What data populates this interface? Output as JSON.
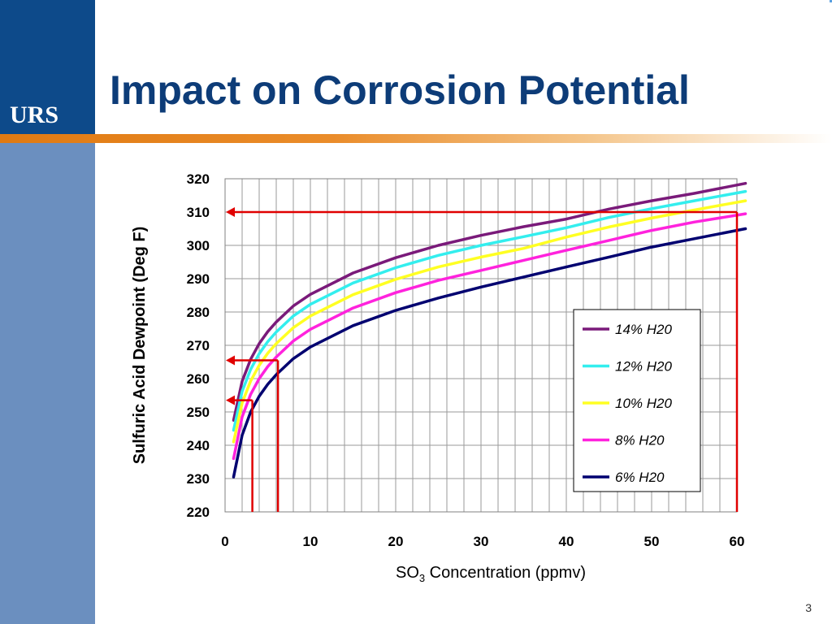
{
  "slide": {
    "title": "Impact on Corrosion Potential",
    "logo_text": "URS",
    "page_number": "3"
  },
  "colors": {
    "brand_blue": "#0d4a8a",
    "side_bar": "#6b8fbf",
    "accent_orange": "#e07a12",
    "marker_red": "#e00000"
  },
  "chart_data": {
    "type": "line",
    "title": "",
    "xlabel_main": "SO",
    "xlabel_sub": "3",
    "xlabel_rest": " Concentration (ppmv)",
    "ylabel": "Sulfuric Acid Dewpoint (Deg F)",
    "xlim": [
      0,
      60
    ],
    "ylim": [
      220,
      320
    ],
    "x_ticks": [
      "0",
      "10",
      "20",
      "30",
      "40",
      "50",
      "60"
    ],
    "y_ticks": [
      "220",
      "230",
      "240",
      "250",
      "260",
      "270",
      "280",
      "290",
      "300",
      "310",
      "320"
    ],
    "grid": true,
    "legend_position": "right-middle",
    "x": [
      1,
      2,
      3,
      4,
      5,
      6,
      8,
      10,
      15,
      20,
      25,
      30,
      35,
      40,
      45,
      50,
      55,
      61
    ],
    "series": [
      {
        "name": "14% H20",
        "color": "#7a1a7a",
        "values": [
          247.5,
          259.2,
          265.8,
          270.5,
          274.1,
          277.0,
          281.8,
          285.3,
          291.7,
          296.3,
          300.0,
          303.0,
          305.6,
          307.9,
          310.9,
          313.4,
          315.6,
          318.6
        ]
      },
      {
        "name": "12% H20",
        "color": "#33eeee",
        "values": [
          244.5,
          256.2,
          262.8,
          267.5,
          271.1,
          274.0,
          278.8,
          282.3,
          288.7,
          293.3,
          297.0,
          300.0,
          302.6,
          305.3,
          308.4,
          311.0,
          313.4,
          316.2
        ]
      },
      {
        "name": "10% H20",
        "color": "#ffff22",
        "values": [
          241.0,
          252.7,
          259.3,
          264.0,
          267.6,
          270.5,
          275.3,
          278.8,
          285.2,
          289.8,
          293.5,
          296.5,
          299.1,
          302.5,
          305.5,
          308.2,
          310.6,
          313.4
        ]
      },
      {
        "name": "8% H20",
        "color": "#ff22dd",
        "values": [
          236.0,
          248.5,
          255.3,
          260.0,
          263.6,
          266.5,
          271.3,
          274.8,
          281.2,
          285.8,
          289.5,
          292.5,
          295.5,
          298.5,
          301.5,
          304.5,
          307.0,
          309.5
        ]
      },
      {
        "name": "6% H20",
        "color": "#000070",
        "values": [
          230.5,
          243.0,
          250.0,
          254.7,
          258.3,
          261.2,
          266.0,
          269.5,
          275.9,
          280.5,
          284.2,
          287.5,
          290.5,
          293.5,
          296.5,
          299.5,
          302.0,
          305.0
        ]
      }
    ],
    "markers": [
      {
        "x": 3.2,
        "y": 253.5
      },
      {
        "x": 6.2,
        "y": 265.5
      },
      {
        "x": 60,
        "y": 310
      }
    ]
  }
}
